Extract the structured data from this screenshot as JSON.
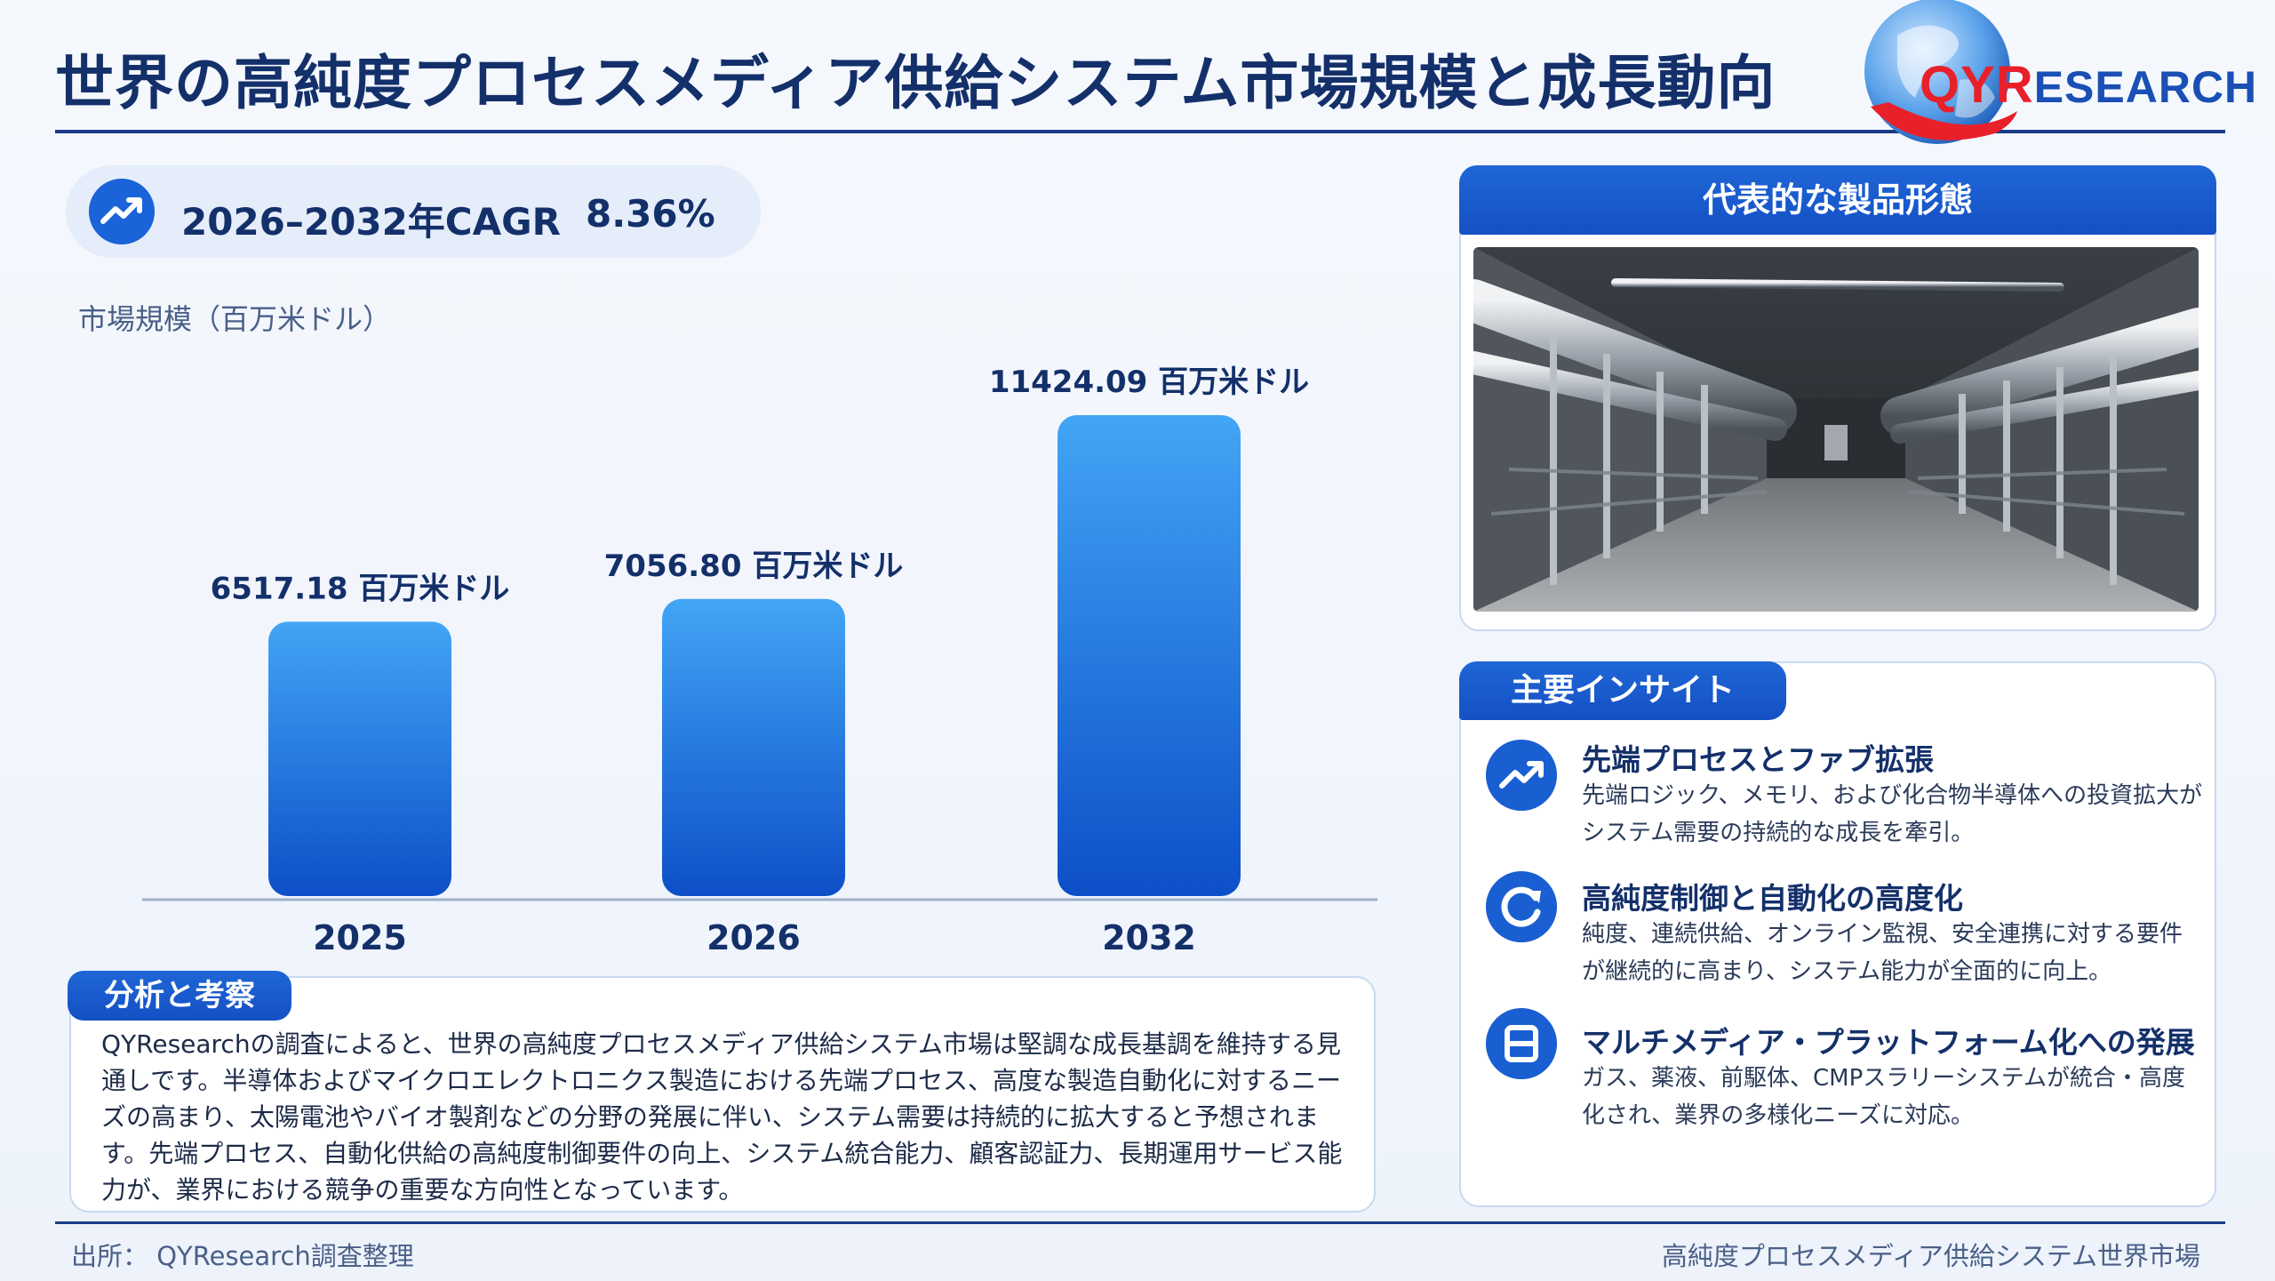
{
  "title": "世界の高純度プロセスメディア供給システム市場規模と成長動向",
  "brand": {
    "prefix": "QYR",
    "suffix": "ESEARCH"
  },
  "cagr": {
    "label": "2026–2032年CAGR",
    "value": "8.36%"
  },
  "chart_data": {
    "type": "bar",
    "ylabel": "市場規模（百万米ドル）",
    "categories": [
      "2025",
      "2026",
      "2032"
    ],
    "values": [
      6517.18,
      7056.8,
      11424.09
    ],
    "value_labels": [
      "6517.18 百万米ドル",
      "7056.80 百万米ドル",
      "11424.09 百万米ドル"
    ],
    "ylim": [
      0,
      12500
    ],
    "grid": false,
    "colors": {
      "bar_top": "#42a5f5",
      "bar_bottom": "#0d4fc8"
    }
  },
  "analysis": {
    "heading": "分析と考察",
    "text": "QYResearchの調査によると、世界の高純度プロセスメディア供給システム市場は堅調な成長基調を維持する見通しです。半導体およびマイクロエレクトロニクス製造における先端プロセス、高度な製造自動化に対するニーズの高まり、太陽電池やバイオ製剤などの分野の発展に伴い、システム需要は持続的に拡大すると予想されます。先端プロセス、自動化供給の高純度制御要件の向上、システム統合能力、顧客認証力、長期運用サービス能力が、業界における競争の重要な方向性となっています。"
  },
  "product": {
    "heading": "代表的な製品形態",
    "image": "factory-piping-corridor"
  },
  "insights": {
    "heading": "主要インサイト",
    "items": [
      {
        "icon": "trend-up-icon",
        "title": "先端プロセスとファブ拡張",
        "text": "先端ロジック、メモリ、および化合物半導体への投資拡大がシステム需要の持続的な成長を牽引。"
      },
      {
        "icon": "refresh-icon",
        "title": "高純度制御と自動化の高度化",
        "text": "純度、連続供給、オンライン監視、安全連携に対する要件が継続的に高まり、システム能力が全面的に向上。"
      },
      {
        "icon": "modules-icon",
        "title": "マルチメディア・プラットフォーム化への発展",
        "text": "ガス、薬液、前駆体、CMPスラリーシステムが統合・高度化され、業界の多様化ニーズに対応。"
      }
    ]
  },
  "footer": {
    "source": "出所： QYResearch調査整理",
    "topic": "高純度プロセスメディア供給システム世界市場"
  },
  "colors": {
    "primary": "#1a3c88",
    "accent": "#1f66d6",
    "text": "#14306a"
  }
}
